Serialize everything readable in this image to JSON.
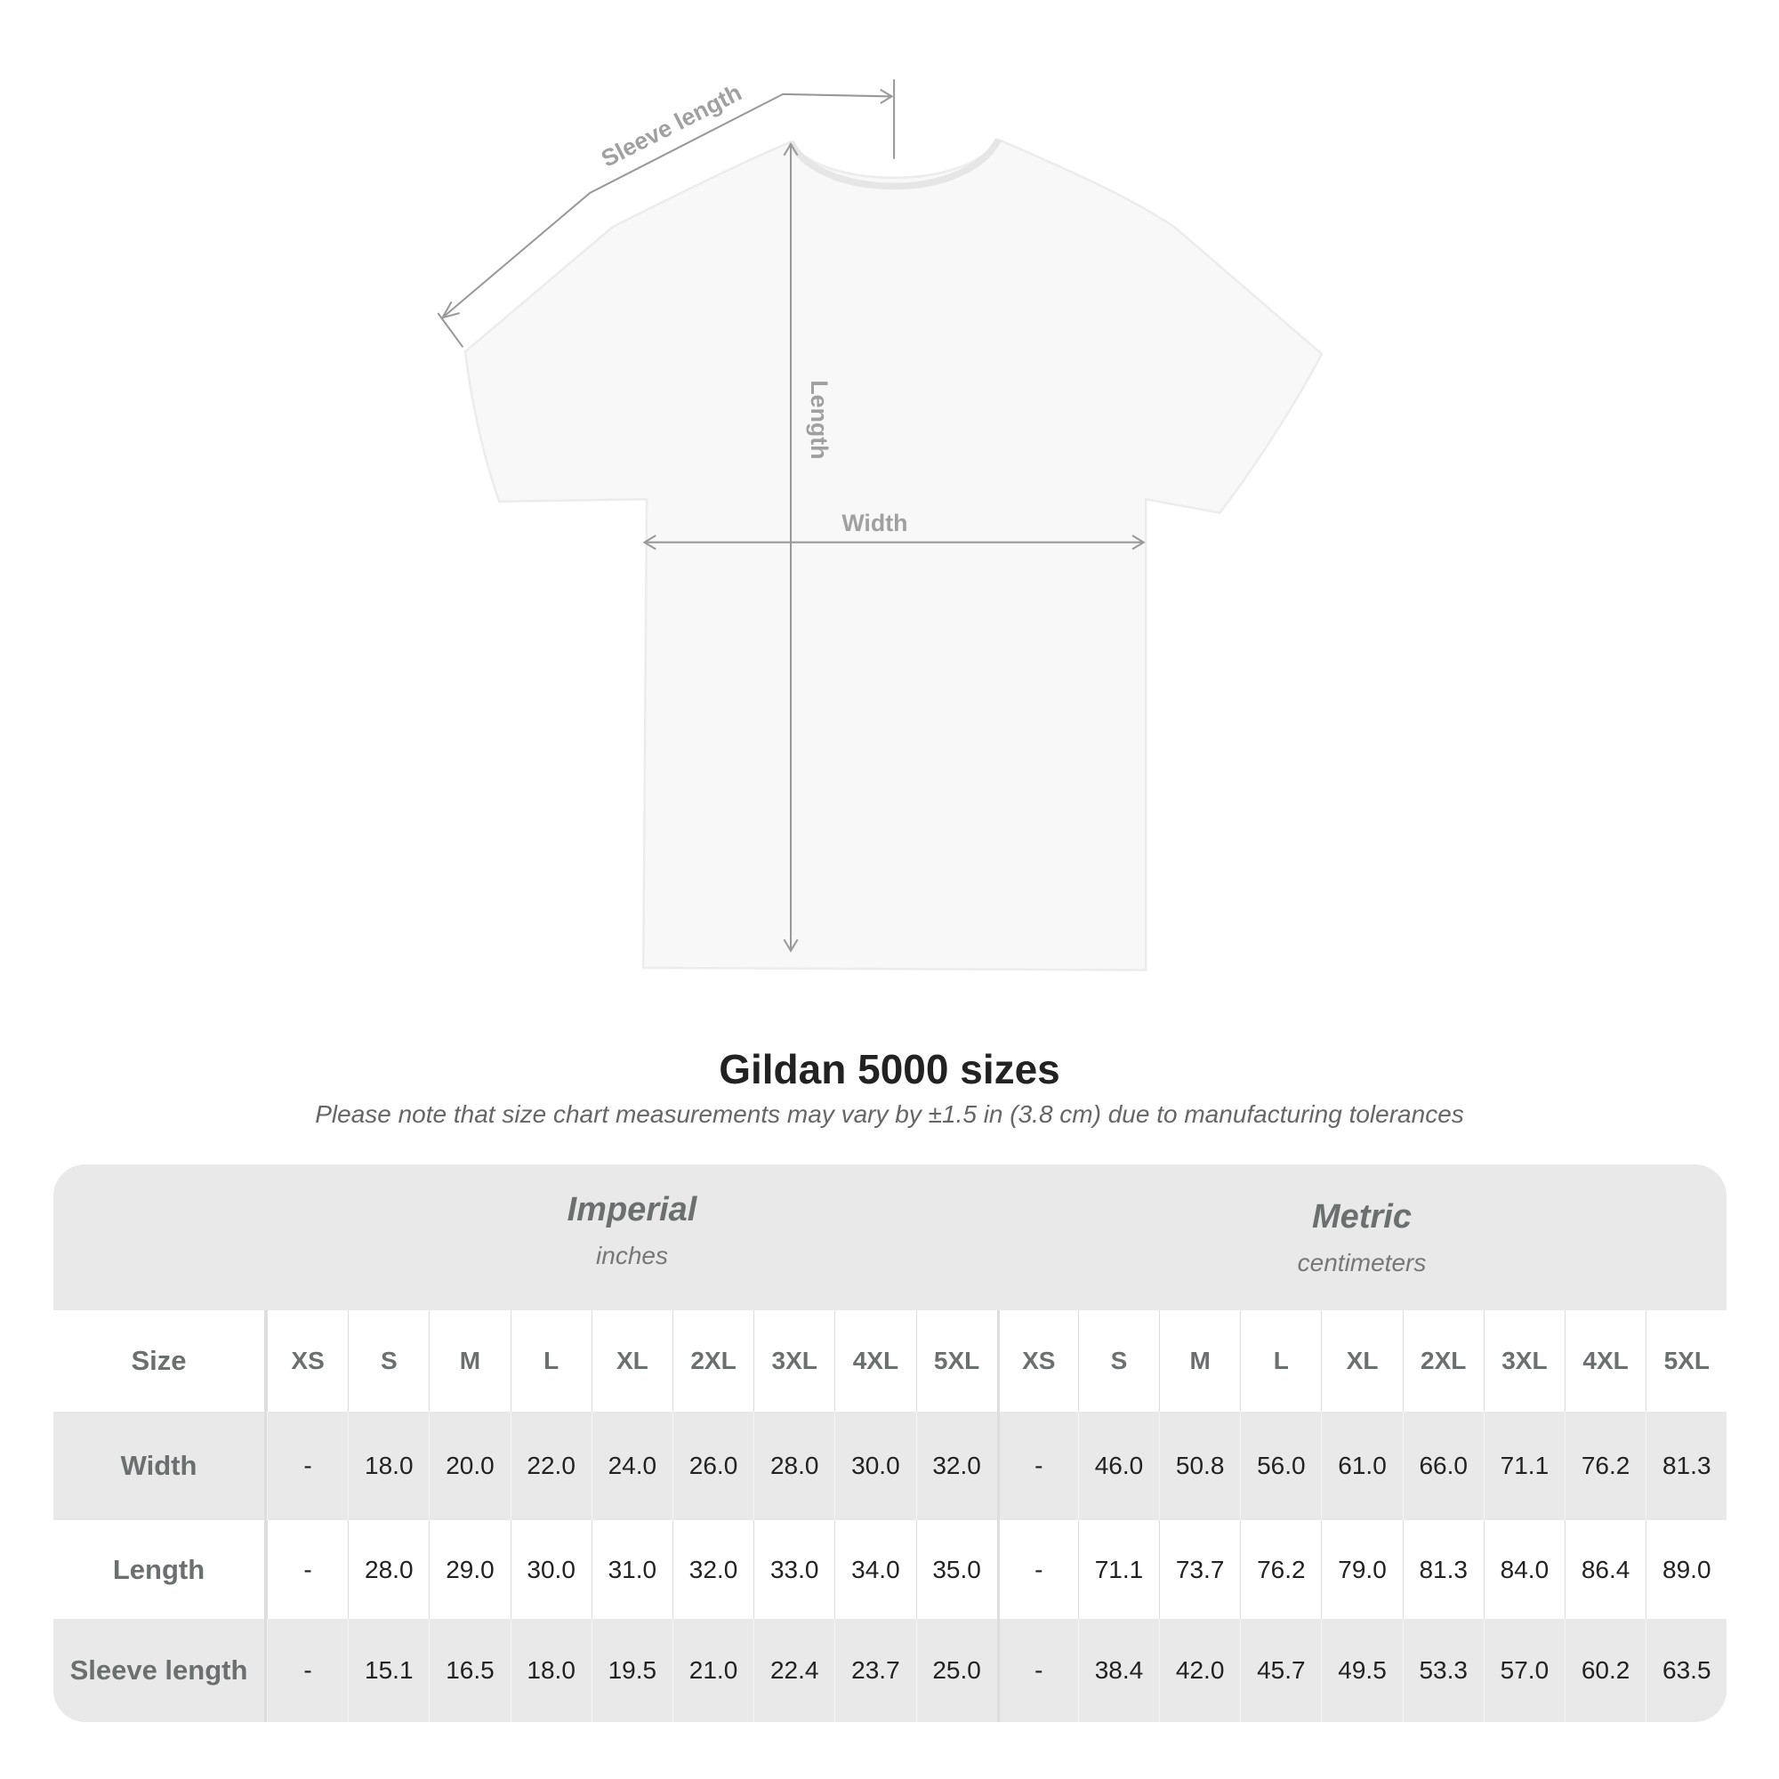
{
  "diagram": {
    "sleeve_label": "Sleeve length",
    "length_label": "Length",
    "width_label": "Width"
  },
  "title": "Gildan 5000 sizes",
  "subtitle": "Please note that size chart measurements may vary by ±1.5 in (3.8 cm) due to manufacturing tolerances",
  "table": {
    "imperial": {
      "name": "Imperial",
      "unit": "inches"
    },
    "metric": {
      "name": "Metric",
      "unit": "centimeters"
    },
    "size_label": "Size",
    "sizes": [
      "XS",
      "S",
      "M",
      "L",
      "XL",
      "2XL",
      "3XL",
      "4XL",
      "5XL"
    ],
    "rows": [
      {
        "label": "Width",
        "imperial": [
          "-",
          "18.0",
          "20.0",
          "22.0",
          "24.0",
          "26.0",
          "28.0",
          "30.0",
          "32.0"
        ],
        "metric": [
          "-",
          "46.0",
          "50.8",
          "56.0",
          "61.0",
          "66.0",
          "71.1",
          "76.2",
          "81.3"
        ]
      },
      {
        "label": "Length",
        "imperial": [
          "-",
          "28.0",
          "29.0",
          "30.0",
          "31.0",
          "32.0",
          "33.0",
          "34.0",
          "35.0"
        ],
        "metric": [
          "-",
          "71.1",
          "73.7",
          "76.2",
          "79.0",
          "81.3",
          "84.0",
          "86.4",
          "89.0"
        ]
      },
      {
        "label": "Sleeve length",
        "imperial": [
          "-",
          "15.1",
          "16.5",
          "18.0",
          "19.5",
          "21.0",
          "22.4",
          "23.7",
          "25.0"
        ],
        "metric": [
          "-",
          "38.4",
          "42.0",
          "45.7",
          "49.5",
          "53.3",
          "57.0",
          "60.2",
          "63.5"
        ]
      }
    ]
  }
}
